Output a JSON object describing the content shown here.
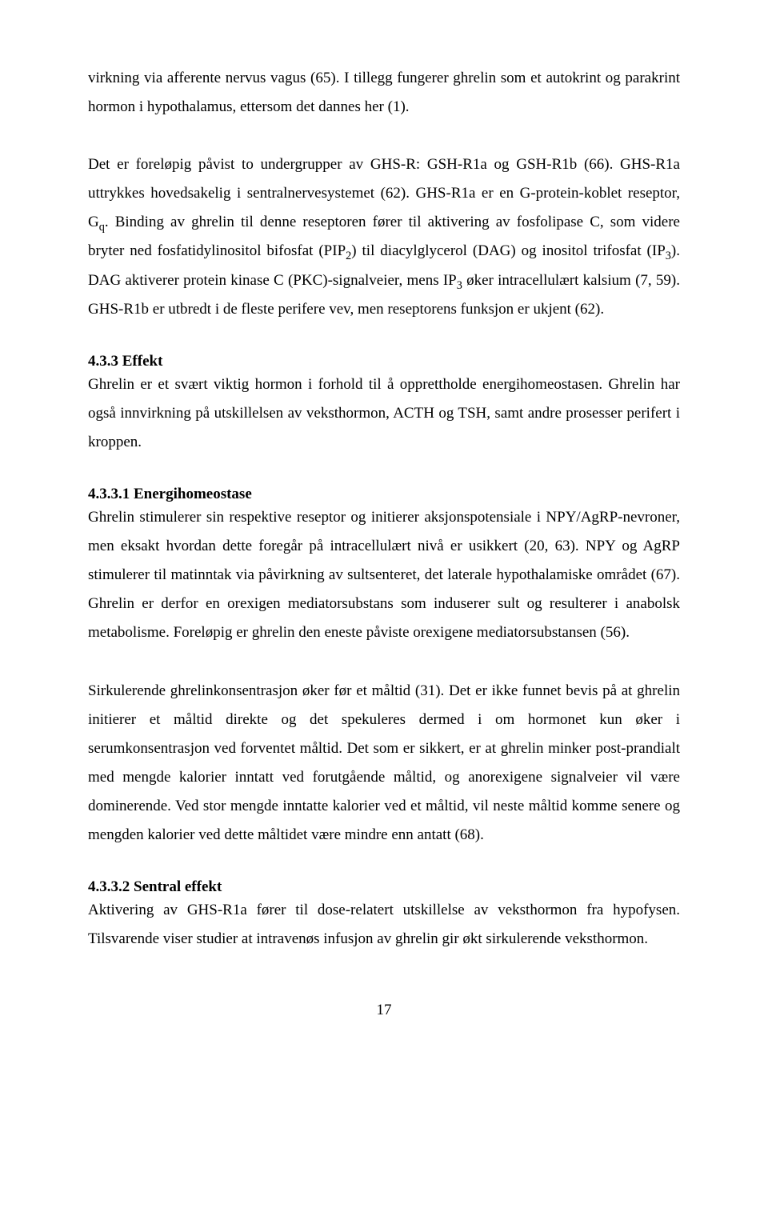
{
  "intro_paragraph": "virkning via afferente nervus vagus (65). I tillegg fungerer ghrelin som et autokrint og parakrint hormon i hypothalamus, ettersom det dannes her (1).",
  "paragraph2_a": "Det er foreløpig påvist to undergrupper av GHS-R: GSH-R1a og GSH-R1b (66). GHS-R1a uttrykkes hovedsakelig i sentralnervesystemet (62). GHS-R1a er en G-protein-koblet reseptor, G",
  "paragraph2_sub1": "q",
  "paragraph2_b": ". Binding av ghrelin til denne reseptoren fører til aktivering av fosfolipase C, som videre bryter ned fosfatidylinositol bifosfat (PIP",
  "paragraph2_sub2": "2",
  "paragraph2_c": ") til diacylglycerol (DAG) og inositol trifosfat (IP",
  "paragraph2_sub3": "3",
  "paragraph2_d": "). DAG aktiverer protein kinase C (PKC)-signalveier, mens IP",
  "paragraph2_sub4": "3",
  "paragraph2_e": " øker intracellulært kalsium (7, 59). GHS-R1b er utbredt i de fleste perifere vev, men reseptorens funksjon er ukjent (62).",
  "section433_title": "4.3.3 Effekt",
  "section433_body": "Ghrelin er et svært viktig hormon i forhold til å opprettholde energihomeostasen. Ghrelin har også innvirkning på utskillelsen av veksthormon, ACTH og TSH, samt andre prosesser perifert i kroppen.",
  "section4331_title": "4.3.3.1 Energihomeostase",
  "section4331_body": "Ghrelin stimulerer sin respektive reseptor og initierer aksjonspotensiale i NPY/AgRP-nevroner, men eksakt hvordan dette foregår på intracellulært nivå er usikkert (20, 63). NPY og AgRP stimulerer til matinntak via påvirkning av sultsenteret, det laterale hypothalamiske området (67). Ghrelin er derfor en orexigen mediatorsubstans som induserer sult og resulterer i anabolsk metabolisme. Foreløpig er ghrelin den eneste påviste orexigene mediatorsubstansen (56).",
  "section4331_body2": "Sirkulerende ghrelinkonsentrasjon øker før et måltid (31). Det er ikke funnet bevis på at ghrelin initierer et måltid direkte og det spekuleres dermed i om hormonet kun øker i serumkonsentrasjon ved forventet måltid. Det som er sikkert, er at ghrelin minker post-prandialt med mengde kalorier inntatt ved forutgående måltid, og anorexigene signalveier vil være dominerende. Ved stor mengde inntatte kalorier ved et måltid, vil neste måltid komme senere og mengden kalorier ved dette måltidet være mindre enn antatt (68).",
  "section4332_title": "4.3.3.2 Sentral effekt",
  "section4332_body": "Aktivering av GHS-R1a fører til dose-relatert utskillelse av veksthormon fra hypofysen. Tilsvarende viser studier at intravenøs infusjon av ghrelin gir økt sirkulerende veksthormon.",
  "page_number": "17"
}
